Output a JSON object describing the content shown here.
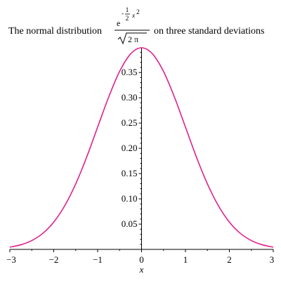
{
  "chart_data": {
    "type": "line",
    "title": {
      "before": "The normal distribution",
      "after": "on three standard deviations",
      "formula": {
        "base": "e",
        "exponent_sign": "-",
        "exponent_numerator": "1",
        "exponent_denominator": "2",
        "exponent_variable": "x",
        "exponent_power": "2",
        "denominator": "2 π"
      }
    },
    "xlabel": "x",
    "ylabel": "",
    "xlim": [
      -3,
      3
    ],
    "ylim": [
      0,
      0.3989
    ],
    "x_ticks": [
      -3,
      -2,
      -1,
      0,
      1,
      2,
      3
    ],
    "x_tick_labels": [
      "−3",
      "−2",
      "−1",
      "0",
      "1",
      "2",
      "3"
    ],
    "y_ticks": [
      0.05,
      0.1,
      0.15,
      0.2,
      0.25,
      0.3,
      0.35
    ],
    "y_tick_labels": [
      "0.05",
      "0.10",
      "0.15",
      "0.20",
      "0.25",
      "0.30",
      "0.35"
    ],
    "grid": false,
    "legend": "none",
    "series": [
      {
        "color": "#e0208c",
        "x": [
          -3,
          -2.75,
          -2.5,
          -2.25,
          -2,
          -1.75,
          -1.5,
          -1.25,
          -1,
          -0.75,
          -0.5,
          -0.25,
          0,
          0.25,
          0.5,
          0.75,
          1,
          1.25,
          1.5,
          1.75,
          2,
          2.25,
          2.5,
          2.75,
          3
        ],
        "y": [
          0.0044,
          0.0091,
          0.0175,
          0.0317,
          0.054,
          0.0863,
          0.1295,
          0.1826,
          0.242,
          0.3011,
          0.3521,
          0.3867,
          0.3989,
          0.3867,
          0.3521,
          0.3011,
          0.242,
          0.1826,
          0.1295,
          0.0863,
          0.054,
          0.0317,
          0.0175,
          0.0091,
          0.0044
        ]
      }
    ]
  }
}
